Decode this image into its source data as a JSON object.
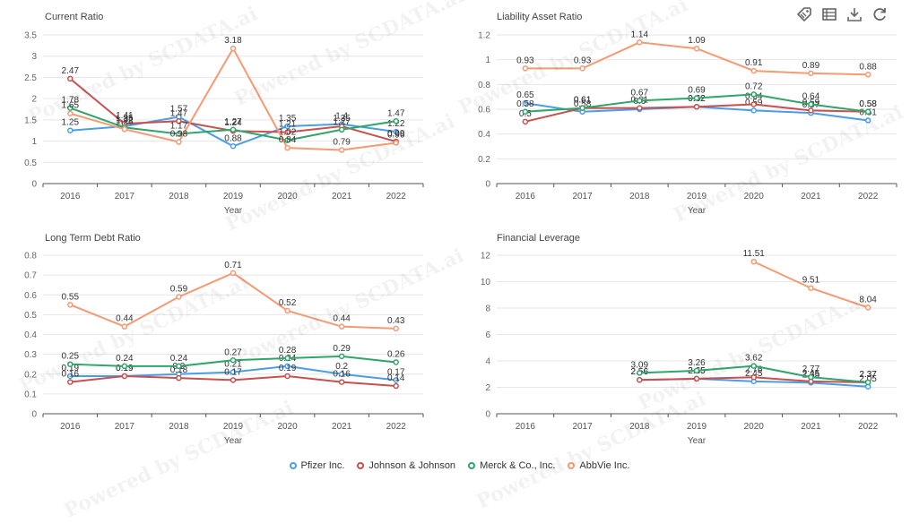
{
  "toolbar": {
    "items": [
      "tag-icon",
      "table-icon",
      "download-icon",
      "refresh-icon"
    ]
  },
  "legend": [
    {
      "name": "Pfizer Inc.",
      "color": "#4a9ee8"
    },
    {
      "name": "Johnson & Johnson",
      "color": "#c8504f"
    },
    {
      "name": "Merck & Co., Inc.",
      "color": "#2fa56a"
    },
    {
      "name": "AbbVie Inc.",
      "color": "#f59a73"
    }
  ],
  "watermark": "Powered by SCDATA.ai",
  "chart_data": [
    {
      "type": "line",
      "title": "Current Ratio",
      "xlabel": "Year",
      "ylabel": "",
      "categories": [
        "2016",
        "2017",
        "2018",
        "2019",
        "2020",
        "2021",
        "2022"
      ],
      "ylim": [
        0,
        3.5
      ],
      "yticks": [
        "0",
        "0.5",
        "1",
        "1.5",
        "2",
        "2.5",
        "3",
        "3.5"
      ],
      "series": [
        {
          "name": "Pfizer Inc.",
          "values": [
            1.25,
            1.35,
            1.57,
            0.88,
            1.35,
            1.4,
            1.22
          ]
        },
        {
          "name": "Johnson & Johnson",
          "values": [
            2.47,
            1.41,
            1.47,
            1.24,
            1.21,
            1.35,
            0.99
          ]
        },
        {
          "name": "Merck & Co., Inc.",
          "values": [
            1.78,
            1.32,
            1.17,
            1.27,
            1.02,
            1.27,
            1.47
          ]
        },
        {
          "name": "AbbVie Inc.",
          "values": [
            1.65,
            1.28,
            0.98,
            3.18,
            0.84,
            0.79,
            0.96
          ]
        }
      ]
    },
    {
      "type": "line",
      "title": "Liability Asset Ratio",
      "xlabel": "Year",
      "ylabel": "",
      "categories": [
        "2016",
        "2017",
        "2018",
        "2019",
        "2020",
        "2021",
        "2022"
      ],
      "ylim": [
        0,
        1.2
      ],
      "yticks": [
        "0",
        "0.2",
        "0.4",
        "0.6",
        "0.8",
        "1",
        "1.2"
      ],
      "series": [
        {
          "name": "Pfizer Inc.",
          "values": [
            0.65,
            0.58,
            0.6,
            0.62,
            0.59,
            0.57,
            0.51
          ]
        },
        {
          "name": "Johnson & Johnson",
          "values": [
            0.5,
            0.61,
            0.61,
            0.62,
            0.64,
            0.59,
            0.58
          ]
        },
        {
          "name": "Merck & Co., Inc.",
          "values": [
            0.58,
            0.61,
            0.67,
            0.69,
            0.72,
            0.64,
            0.58
          ]
        },
        {
          "name": "AbbVie Inc.",
          "values": [
            0.93,
            0.93,
            1.14,
            1.09,
            0.91,
            0.89,
            0.88
          ]
        }
      ]
    },
    {
      "type": "line",
      "title": "Long Term Debt Ratio",
      "xlabel": "Year",
      "ylabel": "",
      "categories": [
        "2016",
        "2017",
        "2018",
        "2019",
        "2020",
        "2021",
        "2022"
      ],
      "ylim": [
        0,
        0.8
      ],
      "yticks": [
        "0",
        "0.1",
        "0.2",
        "0.3",
        "0.4",
        "0.5",
        "0.6",
        "0.7",
        "0.8"
      ],
      "series": [
        {
          "name": "Pfizer Inc.",
          "values": [
            0.19,
            0.19,
            0.2,
            0.21,
            0.24,
            0.2,
            0.17
          ]
        },
        {
          "name": "Johnson & Johnson",
          "values": [
            0.16,
            0.19,
            0.18,
            0.17,
            0.19,
            0.16,
            0.14
          ]
        },
        {
          "name": "Merck & Co., Inc.",
          "values": [
            0.25,
            0.24,
            0.24,
            0.27,
            0.28,
            0.29,
            0.26
          ]
        },
        {
          "name": "AbbVie Inc.",
          "values": [
            0.55,
            0.44,
            0.59,
            0.71,
            0.52,
            0.44,
            0.43
          ]
        }
      ]
    },
    {
      "type": "line",
      "title": "Financial Leverage",
      "xlabel": "Year",
      "ylabel": "",
      "categories": [
        "2016",
        "2017",
        "2018",
        "2019",
        "2020",
        "2021",
        "2022"
      ],
      "ylim": [
        0,
        12
      ],
      "yticks": [
        "0",
        "2",
        "4",
        "6",
        "8",
        "10",
        "12"
      ],
      "series": [
        {
          "name": "Pfizer Inc.",
          "values": [
            null,
            null,
            2.56,
            2.65,
            2.45,
            2.35,
            2.05
          ]
        },
        {
          "name": "Johnson & Johnson",
          "values": [
            null,
            null,
            2.56,
            2.65,
            2.76,
            2.45,
            2.37
          ]
        },
        {
          "name": "Merck & Co., Inc.",
          "values": [
            null,
            null,
            3.09,
            3.26,
            3.62,
            2.77,
            2.37
          ]
        },
        {
          "name": "AbbVie Inc.",
          "values": [
            null,
            null,
            null,
            null,
            11.51,
            9.51,
            8.04
          ]
        }
      ]
    }
  ]
}
